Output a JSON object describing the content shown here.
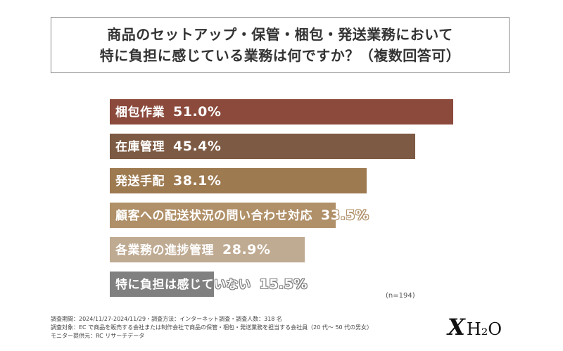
{
  "title": {
    "line1": "商品のセットアップ・保管・梱包・発送業務において",
    "line2": "特に負担に感じている業務は何ですか？（複数回答可）"
  },
  "chart_data": {
    "type": "bar",
    "orientation": "horizontal",
    "categories": [
      "梱包作業",
      "在庫管理",
      "発送手配",
      "顧客への配送状況の問い合わせ対応",
      "各業務の進捗管理",
      "特に負担は感じていない"
    ],
    "values": [
      51.0,
      45.4,
      38.1,
      33.5,
      28.9,
      15.5
    ],
    "value_labels": [
      "51.0%",
      "45.4%",
      "38.1%",
      "33.5%",
      "28.9%",
      "15.5%"
    ],
    "colors": [
      "#8b4a3c",
      "#7d5a43",
      "#9e7a50",
      "#b09068",
      "#bfaa92",
      "#808080"
    ],
    "xlim": [
      0,
      51.0
    ],
    "grid": false,
    "legend": "none"
  },
  "sample_note": "(n=194)",
  "footnote": {
    "line1": "調査期間：2024/11/27-2024/11/29・調査方法：インターネット調査・調査人数：318 名",
    "line2": "調査対象：EC で商品を販売する会社または制作会社で商品の保管・梱包・発送業務を担当する会社員（20 代～ 50 代の男女）",
    "line3": "モニター提供元：RC リサーチデータ"
  },
  "logo": {
    "x": "X",
    "h2o": "H₂O"
  }
}
